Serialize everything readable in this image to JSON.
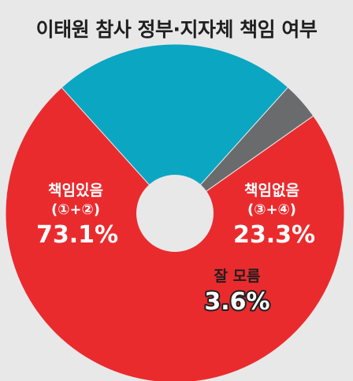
{
  "chart_data": {
    "type": "pie",
    "title": "이태원 참사 정부·지자체 책임 여부",
    "slices": [
      {
        "label": "책임있음",
        "sublabel": "(①+②)",
        "value": 73.1,
        "value_label": "73.1%",
        "color": "#ea2b2e"
      },
      {
        "label": "책임없음",
        "sublabel": "(③+④)",
        "value": 23.3,
        "value_label": "23.3%",
        "color": "#0ba6c2"
      },
      {
        "label": "잘 모름",
        "sublabel": "",
        "value": 3.6,
        "value_label": "3.6%",
        "color": "#6a6b6d"
      }
    ],
    "donut_hole": true,
    "legend": "none"
  }
}
